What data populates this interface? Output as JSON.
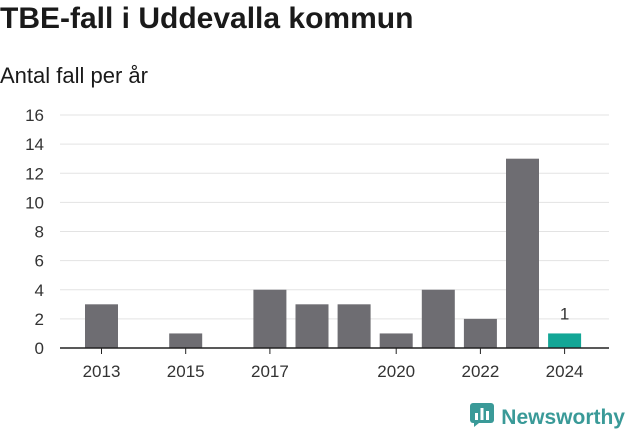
{
  "title": "TBE-fall i Uddevalla kommun",
  "subtitle": "Antal fall per år",
  "brand": {
    "name": "Newsworthy",
    "icon": "newsworthy-logo-icon",
    "color": "#3a9a98"
  },
  "chart_data": {
    "type": "bar",
    "title": "TBE-fall i Uddevalla kommun",
    "subtitle": "Antal fall per år",
    "xlabel": "",
    "ylabel": "",
    "categories": [
      "2013",
      "2014",
      "2015",
      "2016",
      "2017",
      "2018",
      "2019",
      "2020",
      "2021",
      "2022",
      "2023",
      "2024"
    ],
    "values": [
      3,
      0,
      1,
      0,
      4,
      3,
      3,
      1,
      4,
      2,
      13,
      1
    ],
    "x_tick_labels": [
      "2013",
      "2015",
      "2017",
      "2020",
      "2022",
      "2024"
    ],
    "y_ticks": [
      0,
      2,
      4,
      6,
      8,
      10,
      12,
      14,
      16
    ],
    "ylim": [
      0,
      16
    ],
    "grid": true,
    "bar_color": "#6e6d72",
    "highlight_color": "#13a696",
    "highlight_category": "2024",
    "data_labels": [
      {
        "category": "2024",
        "text": "1"
      }
    ]
  }
}
